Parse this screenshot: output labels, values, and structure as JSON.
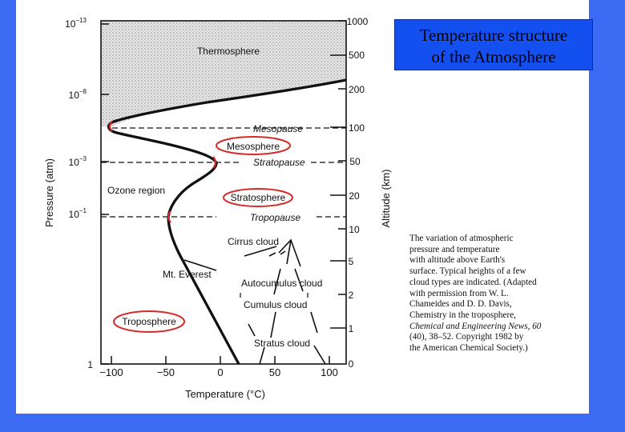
{
  "title": [
    "Temperature structure",
    "of the Atmosphere"
  ],
  "axes": {
    "x_label": "Temperature (°C)",
    "x_ticks": [
      "−100",
      "−50",
      "0",
      "50",
      "100"
    ],
    "left_label": "Pressure (atm)",
    "left_ticks": [
      {
        "base": "10",
        "exp": "−13"
      },
      {
        "base": "10",
        "exp": "−8"
      },
      {
        "base": "10",
        "exp": "−3"
      },
      {
        "base": "10",
        "exp": "−1"
      },
      {
        "base": "1",
        "exp": ""
      }
    ],
    "right_label": "Altitude (km)",
    "right_ticks": [
      "1000",
      "500",
      "200",
      "100",
      "50",
      "20",
      "10",
      "5",
      "2",
      "1",
      "0"
    ]
  },
  "labels": {
    "thermosphere": "Thermosphere",
    "mesopause": "Mesopause",
    "mesosphere": "Mesosphere",
    "stratopause": "Stratopause",
    "ozone_region": "Ozone region",
    "stratosphere": "Stratosphere",
    "tropopause": "Tropopause",
    "cirrus": "Cirrus cloud",
    "everest": "Mt. Everest",
    "autocumulus": "Autocumulus cloud",
    "cumulus": "Cumulus cloud",
    "troposphere": "Troposphere",
    "stratus": "Stratus cloud"
  },
  "caption": [
    "The variation of atmospheric",
    "pressure and temperature",
    "with altitude above Earth's",
    "surface. Typical heights of a few",
    "cloud types are indicated. (Adapted",
    "with permission from W. L.",
    "Chameides and D. D. Davis,",
    "Chemistry in the troposphere,",
    "Chemical and Engineering News, 60",
    "(40), 38–52. Copyright 1982 by",
    "the American Chemical Society.)"
  ],
  "colors": {
    "background": "#3b6bf2",
    "title_box": "#1450f0",
    "highlight": "#d42a2a"
  }
}
